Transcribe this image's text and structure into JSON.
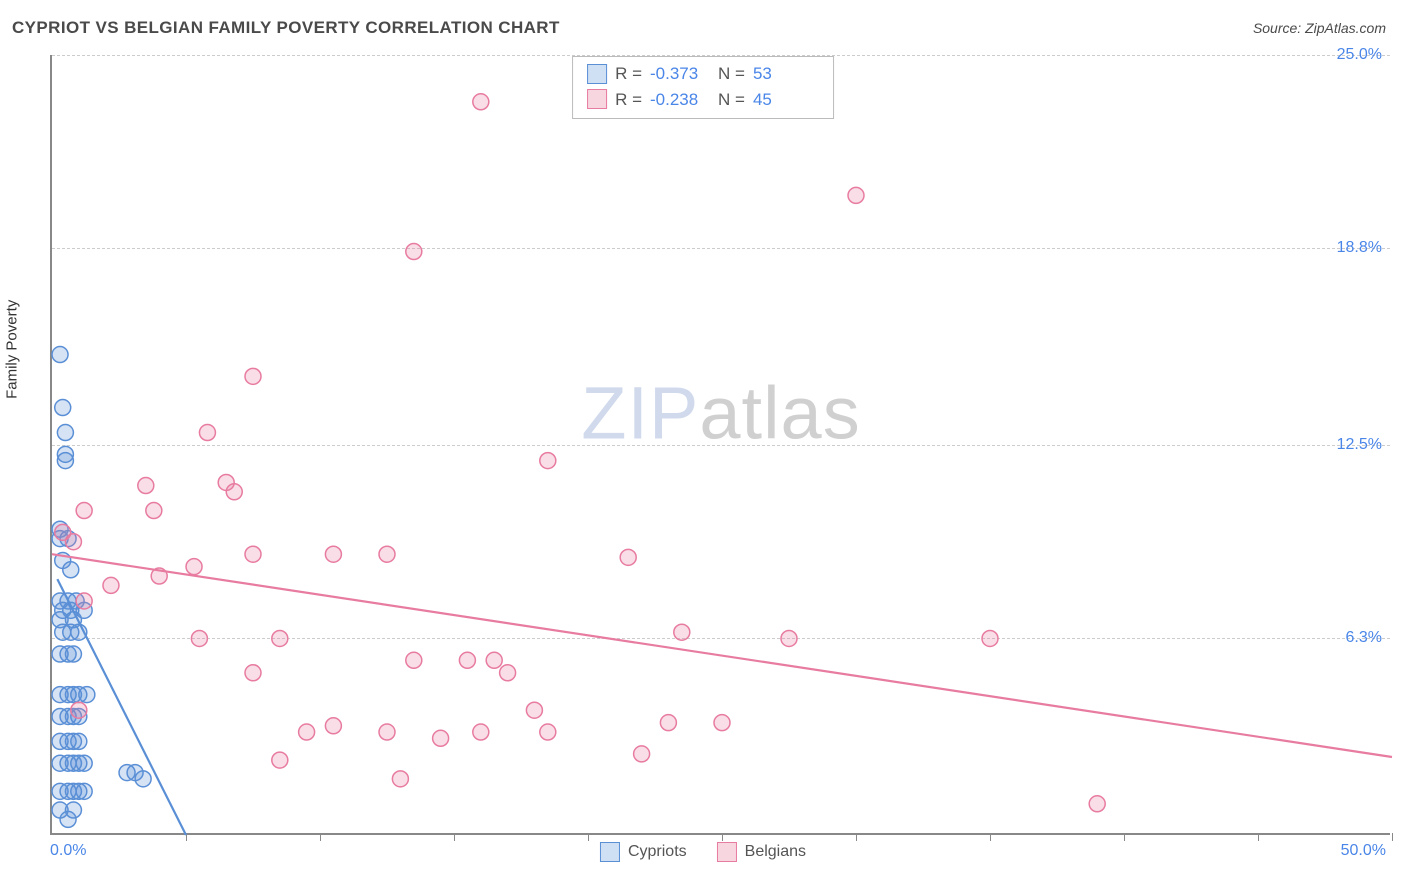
{
  "title": "CYPRIOT VS BELGIAN FAMILY POVERTY CORRELATION CHART",
  "source_prefix": "Source: ",
  "source_name": "ZipAtlas.com",
  "y_axis_title": "Family Poverty",
  "watermark_a": "ZIP",
  "watermark_b": "atlas",
  "chart": {
    "type": "scatter",
    "xlim": [
      0,
      50
    ],
    "ylim": [
      0,
      25
    ],
    "x_tick_count": 10,
    "x_label_min": "0.0%",
    "x_label_max": "50.0%",
    "y_ticks": [
      6.3,
      12.5,
      18.8,
      25.0
    ],
    "y_tick_labels": [
      "6.3%",
      "12.5%",
      "18.8%",
      "25.0%"
    ],
    "background_color": "#ffffff",
    "grid_color": "#cccccc",
    "axis_color": "#888888",
    "value_label_color": "#4a86e8",
    "marker_radius": 8,
    "marker_stroke_width": 1.5,
    "marker_fill_opacity": 0.25,
    "trend_line_width": 2.2
  },
  "series": [
    {
      "name": "Cypriots",
      "color_stroke": "#5a8fd6",
      "color_fill": "#5a8fd6",
      "swatch_fill": "#cfe0f5",
      "swatch_border": "#5a8fd6",
      "r_text": "-0.373",
      "n_text": "53",
      "trend": {
        "x1": 0.2,
        "y1": 8.2,
        "x2": 5.0,
        "y2": 0.0
      },
      "points": [
        [
          0.3,
          15.4
        ],
        [
          0.4,
          13.7
        ],
        [
          0.5,
          12.9
        ],
        [
          0.5,
          12.2
        ],
        [
          0.5,
          12.0
        ],
        [
          0.3,
          9.8
        ],
        [
          0.3,
          9.5
        ],
        [
          0.6,
          9.5
        ],
        [
          0.4,
          8.8
        ],
        [
          0.7,
          8.5
        ],
        [
          0.3,
          7.5
        ],
        [
          0.6,
          7.5
        ],
        [
          0.9,
          7.5
        ],
        [
          0.4,
          7.2
        ],
        [
          0.7,
          7.2
        ],
        [
          1.2,
          7.2
        ],
        [
          0.3,
          6.9
        ],
        [
          0.8,
          6.9
        ],
        [
          0.4,
          6.5
        ],
        [
          0.7,
          6.5
        ],
        [
          1.0,
          6.5
        ],
        [
          0.3,
          5.8
        ],
        [
          0.6,
          5.8
        ],
        [
          0.8,
          5.8
        ],
        [
          0.3,
          4.5
        ],
        [
          0.6,
          4.5
        ],
        [
          0.8,
          4.5
        ],
        [
          1.0,
          4.5
        ],
        [
          1.3,
          4.5
        ],
        [
          0.3,
          3.8
        ],
        [
          0.6,
          3.8
        ],
        [
          0.8,
          3.8
        ],
        [
          1.0,
          3.8
        ],
        [
          0.3,
          3.0
        ],
        [
          0.6,
          3.0
        ],
        [
          0.8,
          3.0
        ],
        [
          1.0,
          3.0
        ],
        [
          0.3,
          2.3
        ],
        [
          0.6,
          2.3
        ],
        [
          0.8,
          2.3
        ],
        [
          1.0,
          2.3
        ],
        [
          1.2,
          2.3
        ],
        [
          2.8,
          2.0
        ],
        [
          3.1,
          2.0
        ],
        [
          3.4,
          1.8
        ],
        [
          0.3,
          1.4
        ],
        [
          0.6,
          1.4
        ],
        [
          0.8,
          1.4
        ],
        [
          1.0,
          1.4
        ],
        [
          1.2,
          1.4
        ],
        [
          0.3,
          0.8
        ],
        [
          0.8,
          0.8
        ],
        [
          0.6,
          0.5
        ]
      ]
    },
    {
      "name": "Belgians",
      "color_stroke": "#e87ba0",
      "color_fill": "#e87ba0",
      "swatch_fill": "#f7d6e0",
      "swatch_border": "#e87ba0",
      "r_text": "-0.238",
      "n_text": "45",
      "trend": {
        "x1": 0.0,
        "y1": 9.0,
        "x2": 50.0,
        "y2": 2.5
      },
      "points": [
        [
          16.0,
          23.5
        ],
        [
          13.5,
          18.7
        ],
        [
          7.5,
          14.7
        ],
        [
          5.8,
          12.9
        ],
        [
          6.5,
          11.3
        ],
        [
          6.8,
          11.0
        ],
        [
          3.5,
          11.2
        ],
        [
          3.8,
          10.4
        ],
        [
          1.2,
          10.4
        ],
        [
          18.5,
          12.0
        ],
        [
          30.0,
          20.5
        ],
        [
          0.4,
          9.7
        ],
        [
          0.8,
          9.4
        ],
        [
          7.5,
          9.0
        ],
        [
          10.5,
          9.0
        ],
        [
          12.5,
          9.0
        ],
        [
          21.5,
          8.9
        ],
        [
          2.2,
          8.0
        ],
        [
          1.2,
          7.5
        ],
        [
          4.0,
          8.3
        ],
        [
          5.3,
          8.6
        ],
        [
          5.5,
          6.3
        ],
        [
          8.5,
          6.3
        ],
        [
          23.5,
          6.5
        ],
        [
          27.5,
          6.3
        ],
        [
          35.0,
          6.3
        ],
        [
          7.5,
          5.2
        ],
        [
          13.5,
          5.6
        ],
        [
          15.5,
          5.6
        ],
        [
          17.0,
          5.2
        ],
        [
          1.0,
          4.0
        ],
        [
          9.5,
          3.3
        ],
        [
          10.5,
          3.5
        ],
        [
          12.5,
          3.3
        ],
        [
          14.5,
          3.1
        ],
        [
          16.0,
          3.3
        ],
        [
          18.0,
          4.0
        ],
        [
          18.5,
          3.3
        ],
        [
          22.0,
          2.6
        ],
        [
          23.0,
          3.6
        ],
        [
          25.0,
          3.6
        ],
        [
          8.5,
          2.4
        ],
        [
          13.0,
          1.8
        ],
        [
          39.0,
          1.0
        ],
        [
          16.5,
          5.6
        ]
      ]
    }
  ],
  "stats_labels": {
    "r": "R =",
    "n": "N ="
  }
}
